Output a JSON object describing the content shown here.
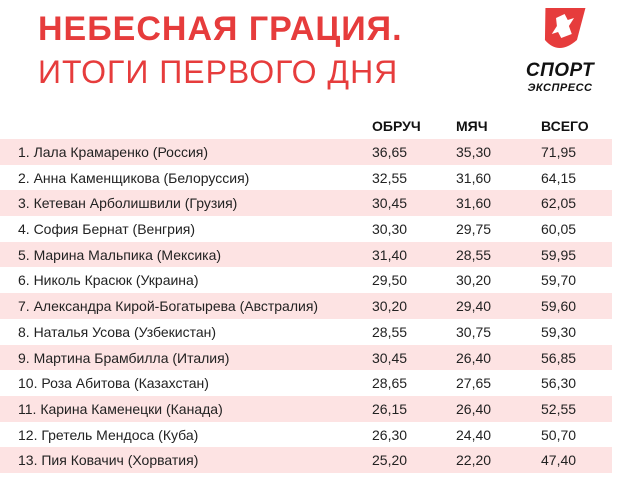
{
  "header": {
    "title_line1": "НЕБЕСНАЯ ГРАЦИЯ.",
    "title_line2": "ИТОГИ ПЕРВОГО ДНЯ"
  },
  "logo": {
    "text_line1": "СПОРТ",
    "text_line2": "ЭКСПРЕСС",
    "color": "#e63c3c"
  },
  "table": {
    "columns": [
      "ОБРУЧ",
      "МЯЧ",
      "ВСЕГО"
    ],
    "rows": [
      {
        "name": "1. Лала Крамаренко (Россия)",
        "hoop": "36,65",
        "ball": "35,30",
        "total": "71,95"
      },
      {
        "name": "2. Анна Каменщикова (Белоруссия)",
        "hoop": "32,55",
        "ball": "31,60",
        "total": "64,15"
      },
      {
        "name": "3. Кетеван Арболишвили (Грузия)",
        "hoop": "30,45",
        "ball": "31,60",
        "total": "62,05"
      },
      {
        "name": "4. София Бернат (Венгрия)",
        "hoop": "30,30",
        "ball": "29,75",
        "total": "60,05"
      },
      {
        "name": "5. Марина Мальпика (Мексика)",
        "hoop": "31,40",
        "ball": "28,55",
        "total": "59,95"
      },
      {
        "name": "6. Николь Красюк (Украина)",
        "hoop": "29,50",
        "ball": "30,20",
        "total": "59,70"
      },
      {
        "name": "7. Александра Кирой-Богатырева (Австралия)",
        "hoop": "30,20",
        "ball": "29,40",
        "total": "59,60"
      },
      {
        "name": "8. Наталья Усова (Узбекистан)",
        "hoop": "28,55",
        "ball": "30,75",
        "total": "59,30"
      },
      {
        "name": "9. Мартина Брамбилла (Италия)",
        "hoop": "30,45",
        "ball": "26,40",
        "total": "56,85"
      },
      {
        "name": "10. Роза Абитова (Казахстан)",
        "hoop": "28,65",
        "ball": "27,65",
        "total": "56,30"
      },
      {
        "name": "11. Карина Каменецки (Канада)",
        "hoop": "26,15",
        "ball": "26,40",
        "total": "52,55"
      },
      {
        "name": "12. Гретель Мендоса (Куба)",
        "hoop": "26,30",
        "ball": "24,40",
        "total": "50,70"
      },
      {
        "name": "13. Пия Ковачич (Хорватия)",
        "hoop": "25,20",
        "ball": "22,20",
        "total": "47,40"
      }
    ]
  }
}
